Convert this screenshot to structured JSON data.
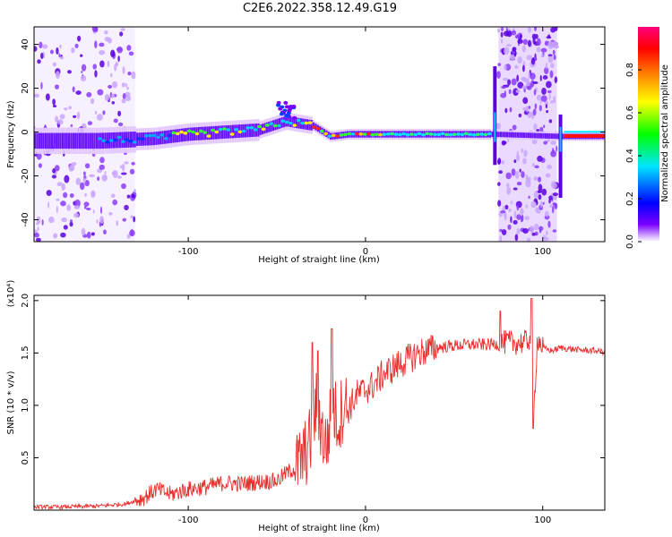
{
  "title": "C2E6.2022.358.12.49.G19",
  "chart_data": [
    {
      "type": "heatmap",
      "xlabel": "Height of straight line (km)",
      "ylabel": "Frequency (Hz)",
      "xlim": [
        -187,
        135
      ],
      "ylim": [
        -50,
        48
      ],
      "x_ticks": [
        -100,
        0,
        100
      ],
      "y_ticks": [
        -40,
        -20,
        0,
        20,
        40
      ],
      "colorbar": {
        "label": "Normalized spectral amplitude",
        "range": [
          0.0,
          1.0
        ],
        "ticks": [
          0.0,
          0.2,
          0.4,
          0.6,
          0.8
        ],
        "colormap": [
          "#ffffff",
          "#7a00ff",
          "#0000ff",
          "#00e5ff",
          "#00ff00",
          "#ffff00",
          "#ff8000",
          "#ff0000",
          "#ff0080"
        ]
      },
      "signal_track": [
        {
          "x": -187,
          "f": -4
        },
        {
          "x": -150,
          "f": -4
        },
        {
          "x": -120,
          "f": -3
        },
        {
          "x": -100,
          "f": -1
        },
        {
          "x": -80,
          "f": 0
        },
        {
          "x": -60,
          "f": 1
        },
        {
          "x": -45,
          "f": 5
        },
        {
          "x": -38,
          "f": 4
        },
        {
          "x": -30,
          "f": 3
        },
        {
          "x": -20,
          "f": -2
        },
        {
          "x": -10,
          "f": -1
        },
        {
          "x": 0,
          "f": -1
        },
        {
          "x": 20,
          "f": -1
        },
        {
          "x": 40,
          "f": -1
        },
        {
          "x": 60,
          "f": -1
        },
        {
          "x": 72,
          "f": -1
        },
        {
          "x": 110,
          "f": -2
        },
        {
          "x": 135,
          "f": -2
        }
      ],
      "noise_bands": [
        [
          -187,
          -130
        ],
        [
          75,
          108
        ]
      ]
    },
    {
      "type": "line",
      "xlabel": "Height of straight line (km)",
      "ylabel": "SNR (10 * v/v)",
      "y_multiplier": "(x10⁴)",
      "xlim": [
        -187,
        135
      ],
      "ylim": [
        0,
        2.05
      ],
      "x_ticks": [
        -100,
        0,
        100
      ],
      "y_ticks": [
        0.5,
        1.0,
        1.5,
        2.0
      ],
      "color": "#e8302e",
      "series": [
        {
          "x": [
            -187,
            -170,
            -150,
            -135,
            -125,
            -118,
            -110,
            -100,
            -90,
            -80,
            -70,
            -60,
            -50,
            -45,
            -40,
            -35,
            -30,
            -28,
            -26,
            -24,
            -22,
            -20,
            -18,
            -15,
            -12,
            -10,
            -5,
            0,
            5,
            10,
            15,
            20,
            25,
            30,
            40,
            50,
            60,
            70,
            80,
            90,
            93,
            94,
            95,
            97,
            100,
            105,
            110,
            115,
            120,
            130,
            135
          ],
          "y": [
            0.03,
            0.03,
            0.04,
            0.06,
            0.12,
            0.2,
            0.15,
            0.2,
            0.22,
            0.26,
            0.25,
            0.27,
            0.28,
            0.35,
            0.4,
            0.5,
            0.7,
            1.0,
            0.9,
            0.7,
            0.6,
            0.85,
            0.95,
            0.85,
            1.05,
            0.95,
            1.1,
            1.15,
            1.2,
            1.3,
            1.35,
            1.4,
            1.45,
            1.5,
            1.55,
            1.57,
            1.58,
            1.58,
            1.6,
            1.6,
            1.65,
            1.95,
            0.95,
            1.65,
            1.55,
            1.52,
            1.55,
            1.54,
            1.53,
            1.52,
            1.51
          ]
        }
      ]
    }
  ]
}
